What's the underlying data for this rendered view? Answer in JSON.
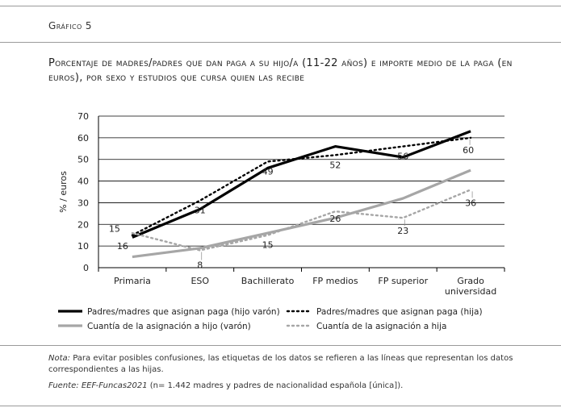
{
  "figure": {
    "label": "Gráfico 5",
    "title": "Porcentaje de madres/padres que dan paga a su hijo/a (11-22 años) e importe medio de la paga (en euros), por sexo y estudios que cursa quien las recibe",
    "note_label": "Nota:",
    "note_text": "Para evitar posibles confusiones, las etiquetas de los datos se refieren a las líneas que representan los datos correspondientes a las hijas.",
    "source_label": "Fuente:",
    "source_name": "EEF-Funcas2021",
    "source_text": "(n= 1.442 madres y padres de nacionalidad española [única])."
  },
  "chart_data": {
    "type": "line",
    "title": "",
    "ylabel": "% / euros",
    "xlabel": "",
    "ylim": [
      0,
      70
    ],
    "yticks": [
      0,
      10,
      20,
      30,
      40,
      50,
      60,
      70
    ],
    "grid": true,
    "legend_position": "bottom",
    "categories": [
      "Primaria",
      "ESO",
      "Bachillerato",
      "FP medios",
      "FP superior",
      "Grado universidad"
    ],
    "category_lines": [
      [
        "Primaria"
      ],
      [
        "ESO"
      ],
      [
        "Bachillerato"
      ],
      [
        "FP medios"
      ],
      [
        "FP superior"
      ],
      [
        "Grado",
        "universidad"
      ]
    ],
    "series": [
      {
        "name": "Padres/madres que asignan paga (hijo varón)",
        "values": [
          14,
          27,
          46,
          56,
          51,
          63
        ],
        "color": "#000000",
        "style": "solid-thick"
      },
      {
        "name": "Padres/madres que asignan paga (hija)",
        "values": [
          15,
          31,
          49,
          52,
          56,
          60
        ],
        "color": "#000000",
        "style": "dotted"
      },
      {
        "name": "Cuantía de la asignación a hijo (varón)",
        "values": [
          5,
          9,
          16,
          23,
          32,
          45
        ],
        "color": "#a6a6a6",
        "style": "solid-thick"
      },
      {
        "name": "Cuantía de la asignación a hija",
        "values": [
          16,
          8,
          15,
          26,
          23,
          36
        ],
        "color": "#a6a6a6",
        "style": "dotted"
      }
    ],
    "data_labels": [
      {
        "series": 1,
        "index": 0,
        "text": "15"
      },
      {
        "series": 1,
        "index": 1,
        "text": "31"
      },
      {
        "series": 1,
        "index": 2,
        "text": "49"
      },
      {
        "series": 1,
        "index": 3,
        "text": "52"
      },
      {
        "series": 1,
        "index": 4,
        "text": "56"
      },
      {
        "series": 1,
        "index": 5,
        "text": "60"
      },
      {
        "series": 3,
        "index": 0,
        "text": "16"
      },
      {
        "series": 3,
        "index": 1,
        "text": "8"
      },
      {
        "series": 3,
        "index": 2,
        "text": "15"
      },
      {
        "series": 3,
        "index": 3,
        "text": "26"
      },
      {
        "series": 3,
        "index": 4,
        "text": "23"
      },
      {
        "series": 3,
        "index": 5,
        "text": "36"
      }
    ]
  }
}
